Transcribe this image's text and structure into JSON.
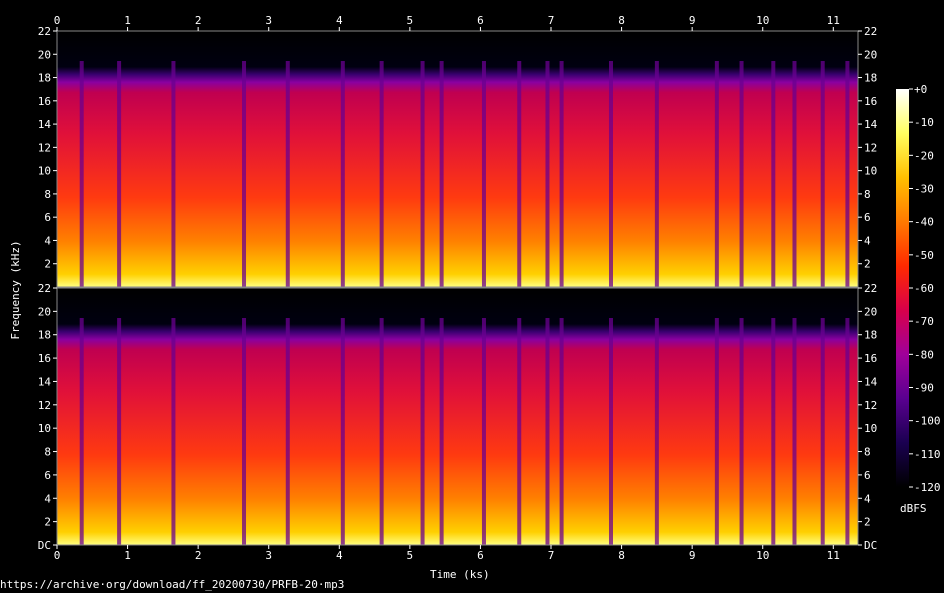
{
  "chart_data": {
    "type": "heatmap",
    "title": "",
    "xlabel": "Time (ks)",
    "ylabel": "Frequency (kHz)",
    "x_ticks": [
      "0",
      "1",
      "2",
      "3",
      "4",
      "5",
      "6",
      "7",
      "8",
      "9",
      "10",
      "11"
    ],
    "xlim": [
      0,
      11.35
    ],
    "channels": [
      {
        "y_ticks_left": [
          "22",
          "20",
          "18",
          "16",
          "14",
          "12",
          "10",
          "8",
          "6",
          "4",
          "2"
        ],
        "y_ticks_right": [
          "22",
          "20",
          "18",
          "16",
          "14",
          "12",
          "10",
          "8",
          "6",
          "4",
          "2"
        ]
      },
      {
        "y_ticks_left": [
          "22",
          "20",
          "18",
          "16",
          "14",
          "12",
          "10",
          "8",
          "6",
          "4",
          "2",
          "DC"
        ],
        "y_ticks_right": [
          "22",
          "20",
          "18",
          "16",
          "14",
          "12",
          "10",
          "8",
          "6",
          "4",
          "2",
          "DC"
        ]
      }
    ],
    "ylim": [
      0,
      22
    ],
    "colorbar": {
      "label": "dBFS",
      "ticks": [
        "+0",
        "-10",
        "-20",
        "-30",
        "-40",
        "-50",
        "-60",
        "-70",
        "-80",
        "-90",
        "-100",
        "-110",
        "-120"
      ],
      "range": [
        -120,
        0
      ],
      "colors": [
        "#000000",
        "#1a0050",
        "#5a0090",
        "#a0009a",
        "#d8004a",
        "#ff2a00",
        "#ff7a00",
        "#ffc000",
        "#ffff60",
        "#ffffff"
      ]
    },
    "silence_gaps_ks": [
      0.35,
      0.88,
      1.65,
      2.65,
      3.27,
      4.05,
      4.6,
      5.18,
      5.45,
      6.05,
      6.55,
      6.95,
      7.15,
      7.85,
      8.5,
      9.35,
      9.7,
      10.15,
      10.45,
      10.85,
      11.2
    ]
  },
  "source_url": "https://archive·org/download/ff_20200730/PRFB-20·mp3"
}
